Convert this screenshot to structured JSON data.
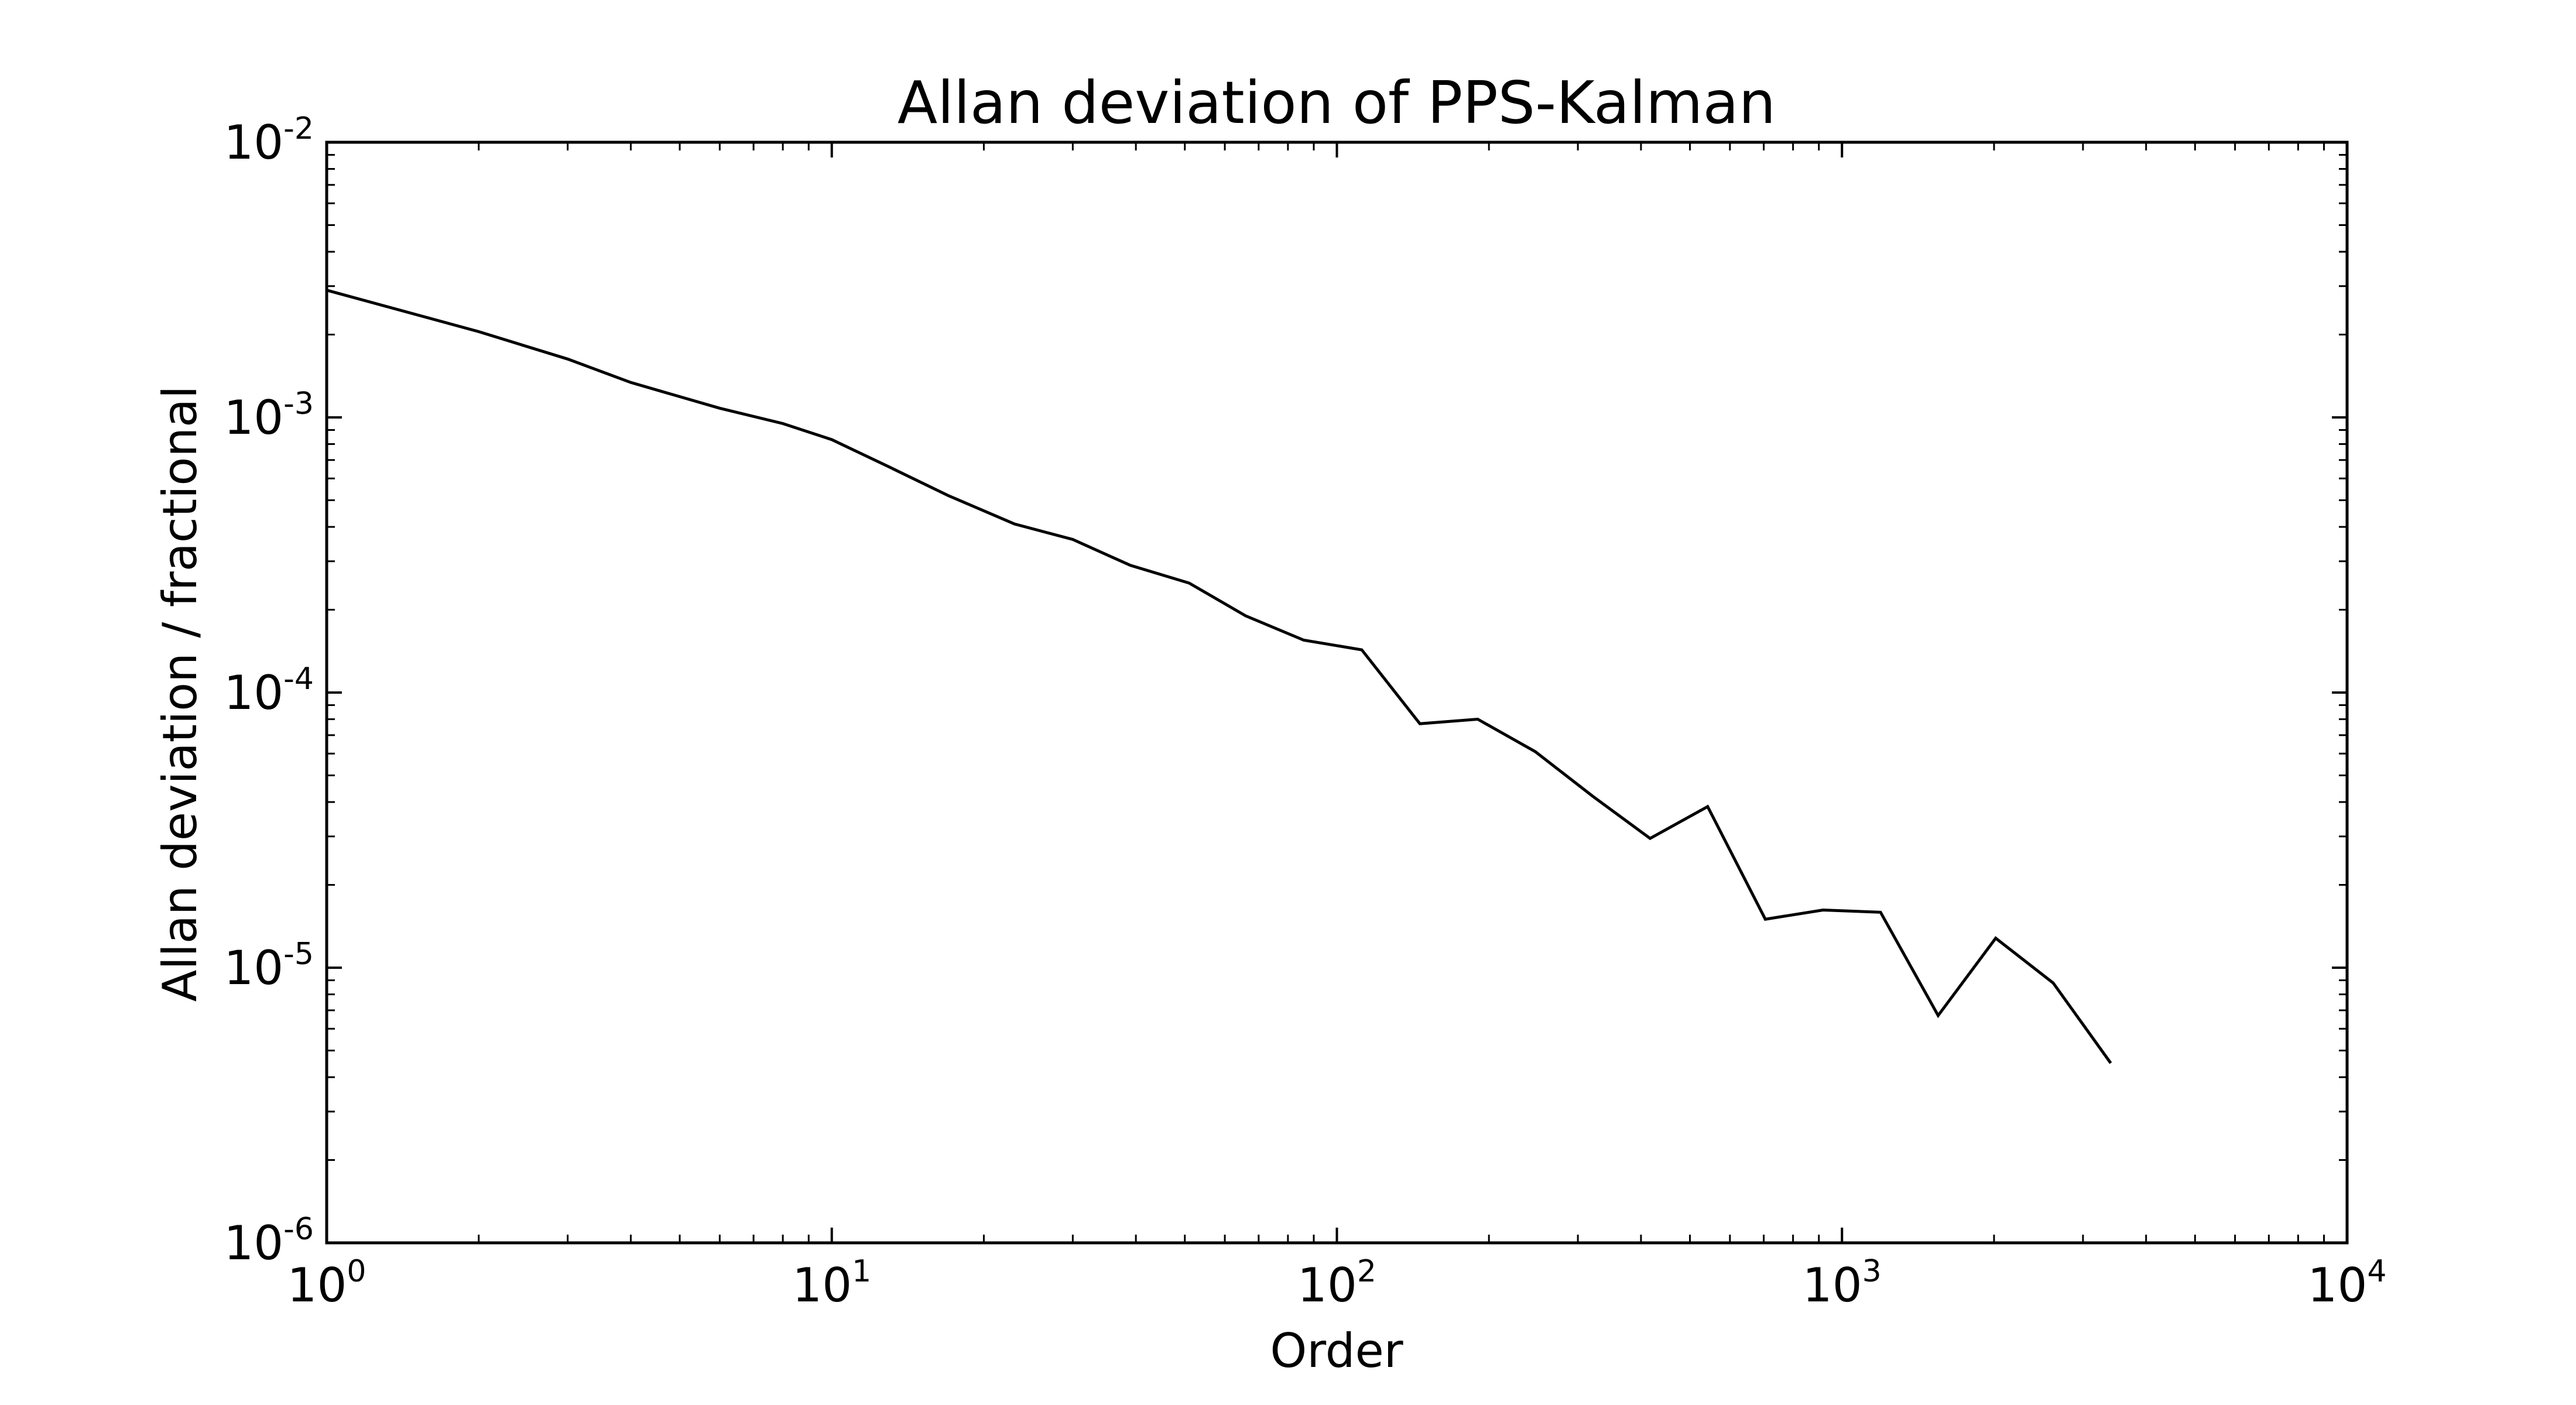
{
  "chart_data": {
    "type": "line",
    "title": "Allan deviation of PPS-Kalman",
    "xlabel": "Order",
    "ylabel": "Allan deviation / fractional",
    "xscale": "log",
    "yscale": "log",
    "xlim": [
      1,
      10000
    ],
    "ylim": [
      1e-06,
      0.01
    ],
    "grid": false,
    "legend": "none",
    "line_color": "#000000",
    "x_ticks": [
      {
        "value": 1,
        "base": "10",
        "exp": "0"
      },
      {
        "value": 10,
        "base": "10",
        "exp": "1"
      },
      {
        "value": 100,
        "base": "10",
        "exp": "2"
      },
      {
        "value": 1000,
        "base": "10",
        "exp": "3"
      },
      {
        "value": 10000,
        "base": "10",
        "exp": "4"
      }
    ],
    "y_ticks": [
      {
        "value": 0.01,
        "base": "10",
        "exp": "-2"
      },
      {
        "value": 0.001,
        "base": "10",
        "exp": "-3"
      },
      {
        "value": 0.0001,
        "base": "10",
        "exp": "-4"
      },
      {
        "value": 1e-05,
        "base": "10",
        "exp": "-5"
      },
      {
        "value": 1e-06,
        "base": "10",
        "exp": "-6"
      }
    ],
    "series": [
      {
        "x": [
          1,
          2,
          3,
          4,
          6,
          8,
          10,
          13,
          17,
          23,
          30,
          39,
          51,
          66,
          86,
          112,
          146,
          190,
          247,
          321,
          417,
          542,
          705,
          917,
          1192,
          1550,
          2015,
          2619,
          3405
        ],
        "y": [
          0.0029,
          0.00205,
          0.00163,
          0.00134,
          0.00108,
          0.00095,
          0.00083,
          0.00066,
          0.00052,
          0.00041,
          0.00036,
          0.00029,
          0.00025,
          0.00019,
          0.000155,
          0.000143,
          7.7e-05,
          8e-05,
          6.1e-05,
          4.2e-05,
          2.95e-05,
          3.85e-05,
          1.5e-05,
          1.62e-05,
          1.59e-05,
          6.7e-06,
          1.28e-05,
          8.8e-06,
          4.5e-06
        ]
      }
    ]
  }
}
